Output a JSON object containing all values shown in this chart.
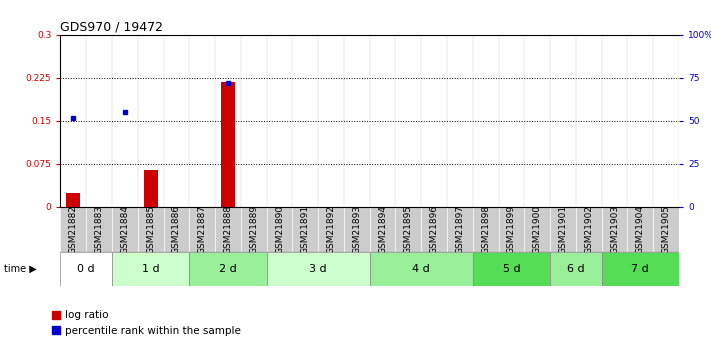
{
  "title": "GDS970 / 19472",
  "samples": [
    "GSM21882",
    "GSM21883",
    "GSM21884",
    "GSM21885",
    "GSM21886",
    "GSM21887",
    "GSM21888",
    "GSM21889",
    "GSM21890",
    "GSM21891",
    "GSM21892",
    "GSM21893",
    "GSM21894",
    "GSM21895",
    "GSM21896",
    "GSM21897",
    "GSM21898",
    "GSM21899",
    "GSM21900",
    "GSM21901",
    "GSM21902",
    "GSM21903",
    "GSM21904",
    "GSM21905"
  ],
  "log_ratio": [
    0.025,
    0,
    0,
    0.065,
    0,
    0,
    0.218,
    0,
    0,
    0,
    0,
    0,
    0,
    0,
    0,
    0,
    0,
    0,
    0,
    0,
    0,
    0,
    0,
    0
  ],
  "pct_rank_points": [
    [
      0,
      51.7
    ],
    [
      2,
      55.0
    ],
    [
      6,
      71.7
    ]
  ],
  "time_groups": {
    "0 d": [
      0,
      1
    ],
    "1 d": [
      2,
      3,
      4
    ],
    "2 d": [
      5,
      6,
      7
    ],
    "3 d": [
      8,
      9,
      10,
      11
    ],
    "4 d": [
      12,
      13,
      14,
      15
    ],
    "5 d": [
      16,
      17,
      18
    ],
    "6 d": [
      19,
      20
    ],
    "7 d": [
      21,
      22,
      23
    ]
  },
  "group_colors": [
    "#ffffff",
    "#ccffcc",
    "#aaffaa",
    "#ccffcc",
    "#aaffaa",
    "#66ee66",
    "#aaffaa",
    "#66ee66"
  ],
  "group_names": [
    "0 d",
    "1 d",
    "2 d",
    "3 d",
    "4 d",
    "5 d",
    "6 d",
    "7 d"
  ],
  "ylim_left": [
    0,
    0.3
  ],
  "ylim_right": [
    0,
    100
  ],
  "yticks_left": [
    0,
    0.075,
    0.15,
    0.225,
    0.3
  ],
  "yticks_right": [
    0,
    25,
    50,
    75,
    100
  ],
  "ytick_labels_left": [
    "0",
    "0.075",
    "0.15",
    "0.225",
    "0.3"
  ],
  "ytick_labels_right": [
    "0",
    "25",
    "50",
    "75",
    "100%"
  ],
  "bar_color_red": "#cc0000",
  "bar_color_blue": "#0000cc",
  "grid_color": "#000000",
  "bg_color": "#ffffff",
  "sample_bg_color": "#cccccc",
  "font_size_ticks": 6.5,
  "font_size_title": 9,
  "font_size_legend": 7.5,
  "font_size_group": 8
}
